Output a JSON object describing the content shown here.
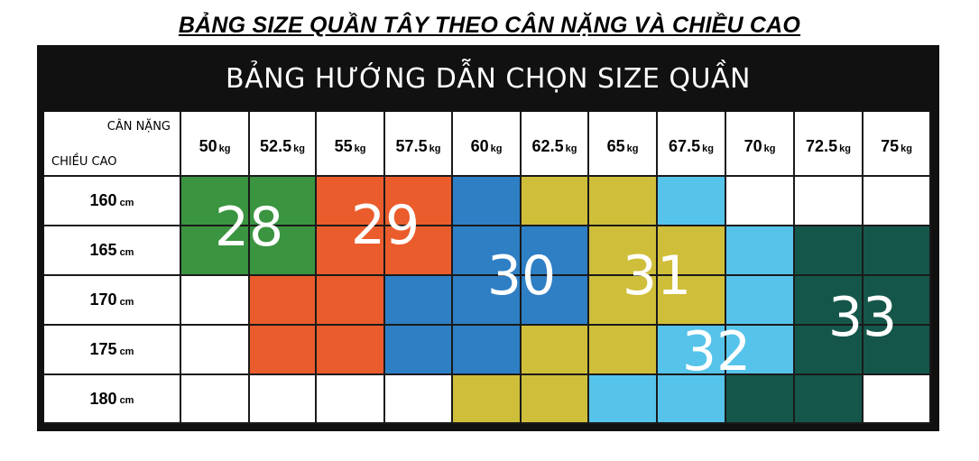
{
  "title": "BẢNG SIZE QUẦN TÂY THEO CÂN NẶNG VÀ CHIỀU CAO",
  "banner": "BẢNG HƯỚNG DẪN CHỌN SIZE QUẦN",
  "corner": {
    "weight_label": "CÂN NẶNG",
    "height_label": "CHIỀU CAO"
  },
  "weight_unit": "kg",
  "height_unit": "cm",
  "weights": [
    "50",
    "52.5",
    "55",
    "57.5",
    "60",
    "62.5",
    "65",
    "67.5",
    "70",
    "72.5",
    "75"
  ],
  "heights": [
    "160",
    "165",
    "170",
    "175",
    "180"
  ],
  "size_colors": {
    "28": "#3a9440",
    "29": "#ea5c2c",
    "30": "#2e7fc4",
    "31": "#cfbe3a",
    "32": "#56c3ea",
    "33": "#14574a",
    "none": "#ffffff"
  },
  "grid": [
    [
      "28",
      "28",
      "29",
      "29",
      "30",
      "31",
      "31",
      "32",
      "none",
      "none",
      "none"
    ],
    [
      "28",
      "28",
      "29",
      "29",
      "30",
      "30",
      "31",
      "31",
      "32",
      "33",
      "33"
    ],
    [
      "none",
      "29",
      "29",
      "30",
      "30",
      "30",
      "31",
      "31",
      "32",
      "33",
      "33"
    ],
    [
      "none",
      "29",
      "29",
      "30",
      "30",
      "31",
      "31",
      "32",
      "32",
      "33",
      "33"
    ],
    [
      "none",
      "none",
      "none",
      "none",
      "31",
      "31",
      "32",
      "32",
      "33",
      "33",
      "none"
    ]
  ],
  "size_labels": [
    "28",
    "29",
    "30",
    "31",
    "32",
    "33"
  ]
}
